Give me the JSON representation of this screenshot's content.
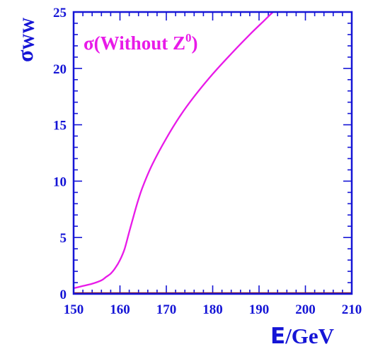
{
  "chart_data": {
    "type": "line",
    "xlabel": "/GeV",
    "xlabel_symbol": "E",
    "ylabel": "σ",
    "ylabel_sub": "WW",
    "xlim": [
      150,
      210
    ],
    "ylim": [
      0,
      25
    ],
    "xticks": [
      150,
      160,
      170,
      180,
      190,
      200,
      210
    ],
    "yticks": [
      0,
      5,
      10,
      15,
      20,
      25
    ],
    "grid": false,
    "annotation": {
      "text": "σ(Without Z",
      "sup": "0",
      "close": ")"
    },
    "series": [
      {
        "name": "σ(Without Z0)",
        "x": [
          150,
          152,
          154,
          156,
          157,
          158,
          159,
          160,
          161,
          162,
          163,
          164,
          165,
          167,
          170,
          173,
          176,
          180,
          184,
          188,
          191,
          193
        ],
        "y": [
          0.5,
          0.7,
          0.9,
          1.2,
          1.5,
          1.8,
          2.3,
          3.0,
          4.0,
          5.5,
          7.0,
          8.4,
          9.6,
          11.5,
          13.8,
          15.8,
          17.5,
          19.5,
          21.3,
          23.0,
          24.2,
          25.0
        ]
      }
    ],
    "colors": {
      "axis": "#1515d6",
      "curve": "#e81ae8",
      "baseline": "#8b1a1a"
    }
  }
}
